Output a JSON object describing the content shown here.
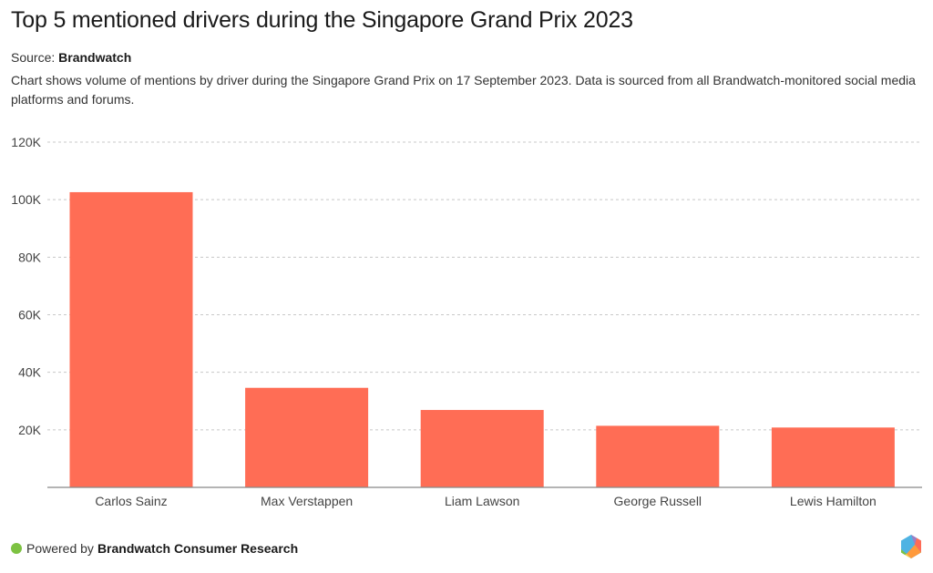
{
  "header": {
    "title": "Top 5 mentioned drivers during the Singapore Grand Prix 2023",
    "source_label": "Source:",
    "source_name": "Brandwatch",
    "description": "Chart shows volume of mentions by driver during the Singapore Grand Prix on 17 September 2023. Data is sourced from all Brandwatch-monitored social media platforms and forums."
  },
  "footer": {
    "powered_by_label": "Powered by",
    "powered_by_name": "Brandwatch Consumer Research",
    "dot_color": "#7dc242"
  },
  "chart_data": {
    "type": "bar",
    "title": "Top 5 mentioned drivers during the Singapore Grand Prix 2023",
    "xlabel": "",
    "ylabel": "",
    "categories": [
      "Carlos Sainz",
      "Max Verstappen",
      "Liam Lawson",
      "George Russell",
      "Lewis Hamilton"
    ],
    "values": [
      102600,
      34600,
      26900,
      21400,
      20800
    ],
    "ylim": [
      0,
      120000
    ],
    "yticks": [
      20000,
      40000,
      60000,
      80000,
      100000,
      120000
    ],
    "ytick_labels": [
      "20K",
      "40K",
      "60K",
      "80K",
      "100K",
      "120K"
    ],
    "grid": true,
    "legend": "none",
    "bar_color": "#ff6d55"
  }
}
